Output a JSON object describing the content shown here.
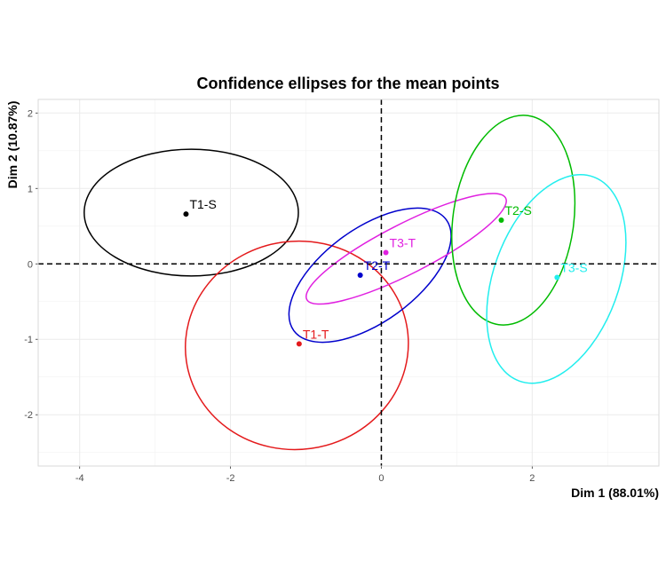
{
  "chart_data": {
    "type": "scatter",
    "title": "Confidence ellipses for the mean points",
    "xlabel": "Dim 1 (88.01%)",
    "ylabel": "Dim 2 (10.87%)",
    "xlim": [
      -4.55,
      3.68
    ],
    "ylim": [
      -2.68,
      2.18
    ],
    "x_ticks": [
      -4,
      -2,
      0,
      2
    ],
    "y_ticks": [
      -2,
      -1,
      0,
      1,
      2
    ],
    "x_tick_labels": [
      "-4",
      "-2",
      "0",
      "2"
    ],
    "y_tick_labels": [
      "-2",
      "-1",
      "0",
      "1",
      "2"
    ],
    "grid": true,
    "reference_lines": {
      "x": 0,
      "y": 0,
      "style": "dashed"
    },
    "points": [
      {
        "label": "T1-S",
        "x": -2.59,
        "y": 0.66,
        "color": "#000000"
      },
      {
        "label": "T1-T",
        "x": -1.09,
        "y": -1.06,
        "color": "#e41a1c"
      },
      {
        "label": "T2-T",
        "x": -0.28,
        "y": -0.15,
        "color": "#0000cc"
      },
      {
        "label": "T3-T",
        "x": 0.06,
        "y": 0.15,
        "color": "#e020e0"
      },
      {
        "label": "T2-S",
        "x": 1.59,
        "y": 0.58,
        "color": "#00bb00"
      },
      {
        "label": "T3-S",
        "x": 2.33,
        "y": -0.18,
        "color": "#22eeee"
      }
    ],
    "ellipses": [
      {
        "group": "T1-S",
        "cx": -2.52,
        "cy": 0.68,
        "rx": 1.42,
        "ry": 0.84,
        "angle": 0,
        "color": "#000000"
      },
      {
        "group": "T1-T",
        "cx": -1.12,
        "cy": -1.08,
        "rx": 1.48,
        "ry": 1.38,
        "angle": 8,
        "color": "#e41a1c"
      },
      {
        "group": "T2-T",
        "cx": -0.15,
        "cy": -0.15,
        "rx": 1.25,
        "ry": 0.62,
        "angle": 36,
        "color": "#0000cc"
      },
      {
        "group": "T3-T",
        "cx": 0.33,
        "cy": 0.2,
        "rx": 1.48,
        "ry": 0.33,
        "angle": 27,
        "color": "#e020e0"
      },
      {
        "group": "T2-S",
        "cx": 1.75,
        "cy": 0.58,
        "rx": 1.4,
        "ry": 0.8,
        "angle": 82,
        "color": "#00bb00"
      },
      {
        "group": "T3-S",
        "cx": 2.32,
        "cy": -0.2,
        "rx": 1.44,
        "ry": 0.83,
        "angle": 70,
        "color": "#22eeee"
      }
    ]
  }
}
